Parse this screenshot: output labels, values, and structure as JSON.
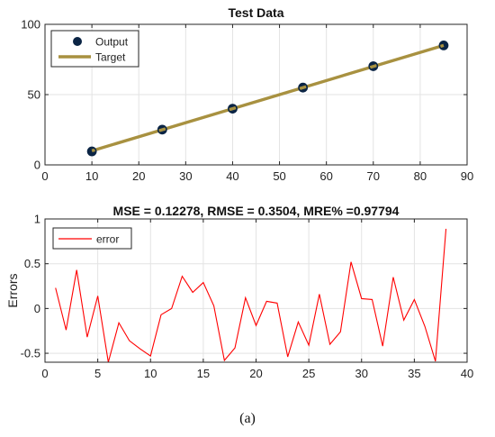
{
  "caption": "(a)",
  "chart_data": [
    {
      "type": "scatter",
      "title": "Test Data",
      "xlabel": "",
      "ylabel": "",
      "xlim": [
        0,
        90
      ],
      "ylim": [
        0,
        100
      ],
      "xticks": [
        0,
        10,
        20,
        30,
        40,
        50,
        60,
        70,
        80,
        90
      ],
      "yticks": [
        0,
        50,
        100
      ],
      "grid": true,
      "legend_position": "top-left",
      "series": [
        {
          "name": "Output",
          "kind": "markers",
          "color": "#0b2545",
          "x": [
            10,
            25,
            40,
            55,
            70,
            85
          ],
          "y": [
            9.6,
            25.1,
            40.0,
            55.0,
            70.2,
            85.0
          ]
        },
        {
          "name": "Target",
          "kind": "line",
          "color": "#a89140",
          "x": [
            10,
            25,
            40,
            55,
            70,
            85
          ],
          "y": [
            10,
            25,
            40,
            55,
            70,
            85
          ]
        }
      ]
    },
    {
      "type": "line",
      "title": "MSE = 0.12278, RMSE = 0.3504, MRE% =0.97794",
      "xlabel": "",
      "ylabel": "Errors",
      "xlim": [
        0,
        40
      ],
      "ylim": [
        -0.6,
        1
      ],
      "xticks": [
        0,
        5,
        10,
        15,
        20,
        25,
        30,
        35,
        40
      ],
      "yticks": [
        -0.5,
        0,
        0.5,
        1
      ],
      "grid": true,
      "legend_position": "top-left",
      "series": [
        {
          "name": "error",
          "color": "#ff0000",
          "x": [
            1,
            2,
            3,
            4,
            5,
            6,
            7,
            8,
            9,
            10,
            11,
            12,
            13,
            14,
            15,
            16,
            17,
            18,
            19,
            20,
            21,
            22,
            23,
            24,
            25,
            26,
            27,
            28,
            29,
            30,
            31,
            32,
            33,
            34,
            35,
            36,
            37,
            38
          ],
          "values": [
            0.23,
            -0.24,
            0.43,
            -0.32,
            0.14,
            -0.6,
            -0.16,
            -0.36,
            -0.45,
            -0.53,
            -0.07,
            0.0,
            0.36,
            0.18,
            0.29,
            0.03,
            -0.58,
            -0.44,
            0.12,
            -0.19,
            0.08,
            0.06,
            -0.54,
            -0.15,
            -0.41,
            0.16,
            -0.4,
            -0.26,
            0.52,
            0.11,
            0.1,
            -0.42,
            0.35,
            -0.13,
            0.1,
            -0.2,
            -0.59,
            0.89
          ]
        }
      ]
    }
  ]
}
